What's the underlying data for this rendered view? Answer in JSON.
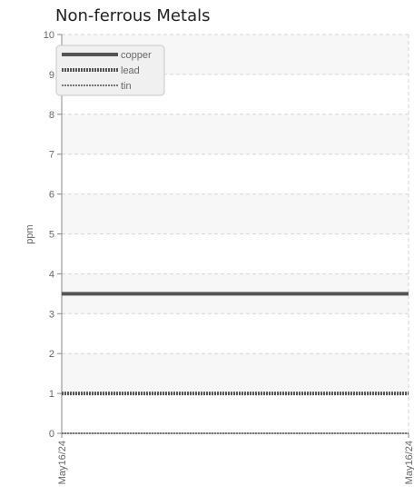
{
  "chart_data": {
    "type": "line",
    "title": "Non-ferrous Metals",
    "xlabel": "",
    "ylabel": "ppm",
    "x": [
      "May16/24",
      "May16/24"
    ],
    "xticks": [
      "May16/24",
      "May16/24"
    ],
    "ylim": [
      0,
      10
    ],
    "yticks": [
      "0",
      "1",
      "2",
      "3",
      "4",
      "5",
      "6",
      "7",
      "8",
      "9",
      "10"
    ],
    "grid": true,
    "legend_position": "top-left",
    "series": [
      {
        "name": "copper",
        "values": [
          3.5,
          3.5
        ],
        "color": "#555555",
        "style": "solid"
      },
      {
        "name": "lead",
        "values": [
          1,
          1
        ],
        "color": "#555555",
        "style": "dotted"
      },
      {
        "name": "tin",
        "values": [
          0,
          0
        ],
        "color": "#777777",
        "style": "dotted-thin"
      }
    ]
  }
}
